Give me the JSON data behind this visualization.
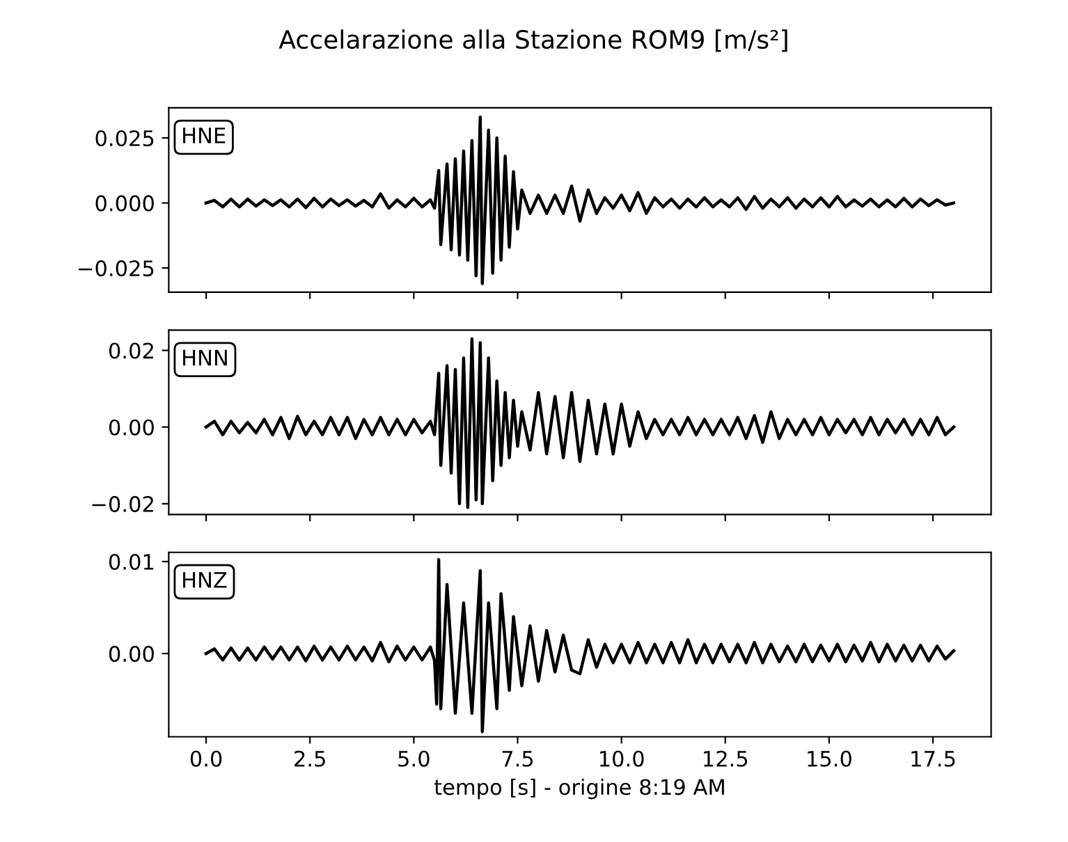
{
  "chart_data": [
    {
      "type": "line",
      "title": "Accelarazione alla Stazione ROM9 [m/s²]",
      "tick_labels": "y",
      "grid": false,
      "legend": false,
      "xlim": [
        -0.9,
        18.9
      ],
      "xticks": [
        {
          "value": 0,
          "label": null
        },
        {
          "value": 2.5,
          "label": null
        },
        {
          "value": 5,
          "label": null
        },
        {
          "value": 7.5,
          "label": null
        },
        {
          "value": 10,
          "label": null
        },
        {
          "value": 12.5,
          "label": null
        },
        {
          "value": 15,
          "label": null
        },
        {
          "value": 17.5,
          "label": null
        }
      ],
      "ylim": [
        -0.0343,
        0.0366
      ],
      "yticks": [
        {
          "value": -0.025,
          "label": "−0.025"
        },
        {
          "value": 0,
          "label": "0.000"
        },
        {
          "value": 0.025,
          "label": "0.025"
        }
      ],
      "series": [
        {
          "name": "HNE",
          "color": "#000000",
          "x": [
            0,
            0.2,
            0.4,
            0.6,
            0.8,
            1.0,
            1.2,
            1.4,
            1.6,
            1.8,
            2.0,
            2.2,
            2.4,
            2.6,
            2.8,
            3.0,
            3.2,
            3.4,
            3.6,
            3.8,
            4.0,
            4.2,
            4.4,
            4.6,
            4.8,
            5.0,
            5.2,
            5.4,
            5.5,
            5.6,
            5.65,
            5.8,
            5.9,
            6.0,
            6.1,
            6.2,
            6.3,
            6.4,
            6.5,
            6.6,
            6.65,
            6.8,
            6.9,
            7.0,
            7.1,
            7.2,
            7.3,
            7.4,
            7.5,
            7.6,
            7.8,
            8.0,
            8.2,
            8.4,
            8.6,
            8.8,
            9.0,
            9.2,
            9.4,
            9.6,
            9.8,
            10.0,
            10.2,
            10.4,
            10.6,
            10.8,
            11.0,
            11.2,
            11.4,
            11.6,
            11.8,
            12.0,
            12.2,
            12.4,
            12.6,
            12.8,
            13.0,
            13.2,
            13.4,
            13.6,
            13.8,
            14.0,
            14.2,
            14.4,
            14.6,
            14.8,
            15.0,
            15.2,
            15.4,
            15.6,
            15.8,
            16.0,
            16.2,
            16.4,
            16.6,
            16.8,
            17.0,
            17.2,
            17.4,
            17.6,
            17.8,
            18.0
          ],
          "values": [
            0,
            0.001,
            -0.0015,
            0.0015,
            -0.0015,
            0.0015,
            -0.0012,
            0.0012,
            -0.001,
            0.0012,
            -0.0015,
            0.0015,
            -0.0018,
            0.0018,
            -0.0015,
            0.0015,
            -0.001,
            0.0012,
            -0.0012,
            0.001,
            -0.0015,
            0.0035,
            -0.002,
            0.0012,
            -0.0015,
            0.0018,
            -0.0015,
            0.0012,
            -0.002,
            0.0125,
            -0.016,
            0.015,
            -0.018,
            0.017,
            -0.02,
            0.02,
            -0.022,
            0.024,
            -0.028,
            0.033,
            -0.031,
            0.028,
            -0.027,
            0.025,
            -0.022,
            0.018,
            -0.017,
            0.012,
            -0.01,
            0.005,
            -0.004,
            0.003,
            -0.004,
            0.003,
            -0.004,
            0.0065,
            -0.007,
            0.005,
            -0.004,
            0.002,
            -0.002,
            0.003,
            -0.003,
            0.004,
            -0.004,
            0.002,
            -0.0015,
            0.0015,
            -0.002,
            0.0015,
            -0.0015,
            0.002,
            -0.0015,
            0.0012,
            -0.0015,
            0.002,
            -0.0025,
            0.0025,
            -0.002,
            0.0015,
            -0.0015,
            0.002,
            -0.002,
            0.0015,
            -0.0015,
            0.002,
            -0.0015,
            0.0025,
            -0.0015,
            0.0012,
            -0.0012,
            0.0015,
            -0.0015,
            0.0012,
            -0.0015,
            0.0018,
            -0.0015,
            0.0015,
            -0.001,
            0.0012,
            -0.0008,
            0
          ]
        }
      ]
    },
    {
      "type": "line",
      "tick_labels": "y",
      "grid": false,
      "legend": false,
      "xlim": [
        -0.9,
        18.9
      ],
      "xticks": [
        {
          "value": 0,
          "label": null
        },
        {
          "value": 2.5,
          "label": null
        },
        {
          "value": 5,
          "label": null
        },
        {
          "value": 7.5,
          "label": null
        },
        {
          "value": 10,
          "label": null
        },
        {
          "value": 12.5,
          "label": null
        },
        {
          "value": 15,
          "label": null
        },
        {
          "value": 17.5,
          "label": null
        }
      ],
      "ylim": [
        -0.0228,
        0.0253
      ],
      "yticks": [
        {
          "value": -0.02,
          "label": "−0.02"
        },
        {
          "value": 0,
          "label": "0.00"
        },
        {
          "value": 0.02,
          "label": "0.02"
        }
      ],
      "series": [
        {
          "name": "HNN",
          "color": "#000000",
          "x": [
            0,
            0.2,
            0.4,
            0.6,
            0.8,
            1.0,
            1.2,
            1.4,
            1.6,
            1.8,
            2.0,
            2.2,
            2.4,
            2.6,
            2.8,
            3.0,
            3.2,
            3.4,
            3.6,
            3.8,
            4.0,
            4.2,
            4.4,
            4.6,
            4.8,
            5.0,
            5.2,
            5.4,
            5.5,
            5.6,
            5.65,
            5.8,
            5.9,
            6.0,
            6.1,
            6.2,
            6.3,
            6.4,
            6.5,
            6.6,
            6.65,
            6.8,
            6.9,
            7.0,
            7.1,
            7.2,
            7.3,
            7.4,
            7.5,
            7.6,
            7.8,
            8.0,
            8.2,
            8.4,
            8.6,
            8.8,
            9.0,
            9.2,
            9.4,
            9.6,
            9.8,
            10.0,
            10.2,
            10.4,
            10.6,
            10.8,
            11.0,
            11.2,
            11.4,
            11.6,
            11.8,
            12.0,
            12.2,
            12.4,
            12.6,
            12.8,
            13.0,
            13.2,
            13.4,
            13.6,
            13.8,
            14.0,
            14.2,
            14.4,
            14.6,
            14.8,
            15.0,
            15.2,
            15.4,
            15.6,
            15.8,
            16.0,
            16.2,
            16.4,
            16.6,
            16.8,
            17.0,
            17.2,
            17.4,
            17.6,
            17.8,
            18.0
          ],
          "values": [
            0,
            0.0015,
            -0.002,
            0.0015,
            -0.0015,
            0.0012,
            -0.0015,
            0.002,
            -0.002,
            0.0025,
            -0.003,
            0.0028,
            -0.002,
            0.0015,
            -0.002,
            0.0025,
            -0.002,
            0.0025,
            -0.003,
            0.002,
            -0.002,
            0.0025,
            -0.002,
            0.002,
            -0.002,
            0.002,
            -0.0015,
            0.0015,
            -0.002,
            0.014,
            -0.01,
            0.016,
            -0.012,
            0.015,
            -0.02,
            0.018,
            -0.021,
            0.023,
            -0.019,
            0.022,
            -0.02,
            0.018,
            -0.014,
            0.012,
            -0.01,
            0.009,
            -0.008,
            0.007,
            -0.005,
            0.004,
            -0.006,
            0.009,
            -0.007,
            0.008,
            -0.008,
            0.009,
            -0.009,
            0.007,
            -0.007,
            0.006,
            -0.007,
            0.006,
            -0.005,
            0.004,
            -0.003,
            0.002,
            -0.002,
            0.002,
            -0.002,
            0.0025,
            -0.002,
            0.002,
            -0.002,
            0.002,
            -0.002,
            0.0025,
            -0.003,
            0.003,
            -0.004,
            0.004,
            -0.003,
            0.002,
            -0.002,
            0.002,
            -0.002,
            0.0025,
            -0.002,
            0.002,
            -0.0015,
            0.002,
            -0.002,
            0.0025,
            -0.002,
            0.002,
            -0.0015,
            0.002,
            -0.002,
            0.002,
            -0.002,
            0.0025,
            -0.002,
            0
          ]
        }
      ]
    },
    {
      "type": "line",
      "xlabel": "tempo [s] - origine 8:19 AM",
      "grid": false,
      "legend": false,
      "xlim": [
        -0.9,
        18.9
      ],
      "xticks": [
        {
          "value": 0,
          "label": "0.0"
        },
        {
          "value": 2.5,
          "label": "2.5"
        },
        {
          "value": 5,
          "label": "5.0"
        },
        {
          "value": 7.5,
          "label": "7.5"
        },
        {
          "value": 10,
          "label": "10.0"
        },
        {
          "value": 12.5,
          "label": "12.5"
        },
        {
          "value": 15,
          "label": "15.0"
        },
        {
          "value": 17.5,
          "label": "17.5"
        }
      ],
      "ylim": [
        -0.00905,
        0.011
      ],
      "yticks": [
        {
          "value": 0,
          "label": "0.00"
        },
        {
          "value": 0.01,
          "label": "0.01"
        }
      ],
      "series": [
        {
          "name": "HNZ",
          "color": "#000000",
          "x": [
            0,
            0.2,
            0.4,
            0.6,
            0.8,
            1.0,
            1.2,
            1.4,
            1.6,
            1.8,
            2.0,
            2.2,
            2.4,
            2.6,
            2.8,
            3.0,
            3.2,
            3.4,
            3.6,
            3.8,
            4.0,
            4.2,
            4.4,
            4.6,
            4.8,
            5.0,
            5.2,
            5.4,
            5.5,
            5.55,
            5.6,
            5.65,
            5.8,
            6.0,
            6.2,
            6.4,
            6.6,
            6.65,
            6.8,
            7.0,
            7.1,
            7.3,
            7.4,
            7.6,
            7.8,
            8.0,
            8.2,
            8.4,
            8.6,
            8.8,
            9.0,
            9.2,
            9.4,
            9.6,
            9.8,
            10.0,
            10.2,
            10.4,
            10.6,
            10.8,
            11.0,
            11.2,
            11.4,
            11.6,
            11.8,
            12.0,
            12.2,
            12.4,
            12.6,
            12.8,
            13.0,
            13.2,
            13.4,
            13.6,
            13.8,
            14.0,
            14.2,
            14.4,
            14.6,
            14.8,
            15.0,
            15.2,
            15.4,
            15.6,
            15.8,
            16.0,
            16.2,
            16.4,
            16.6,
            16.8,
            17.0,
            17.2,
            17.4,
            17.6,
            17.8,
            18.0
          ],
          "values": [
            0,
            0.0005,
            -0.0007,
            0.0006,
            -0.0007,
            0.0006,
            -0.0007,
            0.0007,
            -0.0006,
            0.0007,
            -0.0007,
            0.0007,
            -0.0008,
            0.0008,
            -0.0007,
            0.0007,
            -0.0007,
            0.0008,
            -0.0007,
            0.0007,
            -0.0008,
            0.0012,
            -0.0009,
            0.0008,
            -0.0007,
            0.0007,
            -0.0007,
            0.0007,
            -0.0008,
            -0.0055,
            0.0102,
            -0.006,
            0.0075,
            -0.0065,
            0.0055,
            -0.0065,
            0.009,
            -0.0085,
            0.0055,
            -0.006,
            0.0065,
            -0.004,
            0.004,
            -0.0035,
            0.003,
            -0.003,
            0.0025,
            -0.002,
            0.002,
            -0.0018,
            -0.0022,
            0.0015,
            -0.0015,
            0.001,
            -0.001,
            0.001,
            -0.001,
            0.0012,
            -0.001,
            0.001,
            -0.001,
            0.0012,
            -0.001,
            0.0015,
            -0.001,
            0.001,
            -0.001,
            0.001,
            -0.0009,
            0.001,
            -0.001,
            0.0012,
            -0.001,
            0.001,
            -0.0009,
            0.0008,
            -0.0009,
            0.001,
            -0.0009,
            0.0009,
            -0.0008,
            0.001,
            -0.0009,
            0.0009,
            -0.0008,
            0.0012,
            -0.0009,
            0.001,
            -0.0008,
            0.0009,
            -0.0008,
            0.0009,
            -0.0008,
            0.0008,
            -0.0006,
            0.0003
          ]
        }
      ]
    }
  ]
}
